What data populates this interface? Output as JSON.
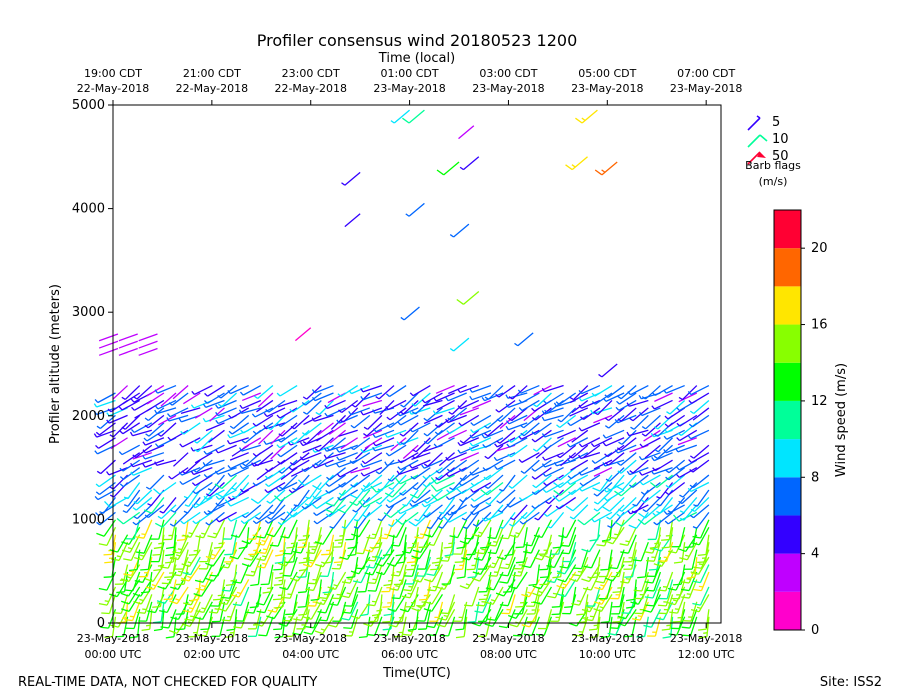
{
  "chart_data": {
    "type": "wind-barb-profile",
    "title": "Profiler consensus wind 20180523 1200",
    "top_axis_label": "Time (local)",
    "top_ticks": [
      {
        "hour": 0,
        "time": "19:00 CDT",
        "date": "22-May-2018"
      },
      {
        "hour": 2,
        "time": "21:00 CDT",
        "date": "22-May-2018"
      },
      {
        "hour": 4,
        "time": "23:00 CDT",
        "date": "22-May-2018"
      },
      {
        "hour": 6,
        "time": "01:00 CDT",
        "date": "23-May-2018"
      },
      {
        "hour": 8,
        "time": "03:00 CDT",
        "date": "23-May-2018"
      },
      {
        "hour": 10,
        "time": "05:00 CDT",
        "date": "23-May-2018"
      },
      {
        "hour": 12,
        "time": "07:00 CDT",
        "date": "23-May-2018"
      }
    ],
    "bottom_axis_label": "Time(UTC)",
    "bottom_ticks": [
      {
        "hour": 0,
        "date": "23-May-2018",
        "time": "00:00 UTC"
      },
      {
        "hour": 2,
        "date": "23-May-2018",
        "time": "02:00 UTC"
      },
      {
        "hour": 4,
        "date": "23-May-2018",
        "time": "04:00 UTC"
      },
      {
        "hour": 6,
        "date": "23-May-2018",
        "time": "06:00 UTC"
      },
      {
        "hour": 8,
        "date": "23-May-2018",
        "time": "08:00 UTC"
      },
      {
        "hour": 10,
        "date": "23-May-2018",
        "time": "10:00 UTC"
      },
      {
        "hour": 12,
        "date": "23-May-2018",
        "time": "12:00 UTC"
      }
    ],
    "xlim_hours_utc": [
      0,
      12.3
    ],
    "ylabel": "Profiler altitude (meters)",
    "ylim": [
      0,
      5000
    ],
    "yticks": [
      0,
      1000,
      2000,
      3000,
      4000,
      5000
    ],
    "colorbar": {
      "label": "Wind speed (m/s)",
      "range": [
        0,
        22
      ],
      "ticks": [
        0,
        4,
        8,
        12,
        16,
        20
      ],
      "levels": [
        {
          "from": 0,
          "to": 2,
          "color": "#ff00cc"
        },
        {
          "from": 2,
          "to": 4,
          "color": "#bf00ff"
        },
        {
          "from": 4,
          "to": 6,
          "color": "#3300ff"
        },
        {
          "from": 6,
          "to": 8,
          "color": "#0066ff"
        },
        {
          "from": 8,
          "to": 10,
          "color": "#00e5ff"
        },
        {
          "from": 10,
          "to": 12,
          "color": "#00ff99"
        },
        {
          "from": 12,
          "to": 14,
          "color": "#00ff00"
        },
        {
          "from": 14,
          "to": 16,
          "color": "#88ff00"
        },
        {
          "from": 16,
          "to": 18,
          "color": "#ffe600"
        },
        {
          "from": 18,
          "to": 20,
          "color": "#ff6600"
        },
        {
          "from": 20,
          "to": 22,
          "color": "#ff0033"
        }
      ]
    },
    "barb_legend": {
      "title_line1": "Barb flags",
      "title_line2": "(m/s)",
      "entries": [
        {
          "value": "5",
          "color": "#3300ff"
        },
        {
          "value": "10",
          "color": "#00ff99"
        },
        {
          "value": "50",
          "color": "#ff0033"
        }
      ]
    },
    "wind_profile_summary": [
      {
        "height_range_m": [
          0,
          1000
        ],
        "hours_utc": [
          0,
          12.3
        ],
        "typical_speed_ms": 14,
        "direction_deg": 200
      },
      {
        "height_range_m": [
          1000,
          1500
        ],
        "hours_utc": [
          0,
          12.3
        ],
        "typical_speed_ms": 8,
        "direction_deg": 230
      },
      {
        "height_range_m": [
          1500,
          2300
        ],
        "hours_utc": [
          0,
          12.3
        ],
        "typical_speed_ms": 6,
        "direction_deg": 240
      },
      {
        "height_range_m": [
          2600,
          2900
        ],
        "hours_utc": [
          0,
          1
        ],
        "typical_speed_ms": 2,
        "direction_deg": 250
      }
    ]
  },
  "footer": {
    "left": "REAL-TIME DATA, NOT CHECKED FOR QUALITY",
    "right": "Site: ISS2"
  }
}
